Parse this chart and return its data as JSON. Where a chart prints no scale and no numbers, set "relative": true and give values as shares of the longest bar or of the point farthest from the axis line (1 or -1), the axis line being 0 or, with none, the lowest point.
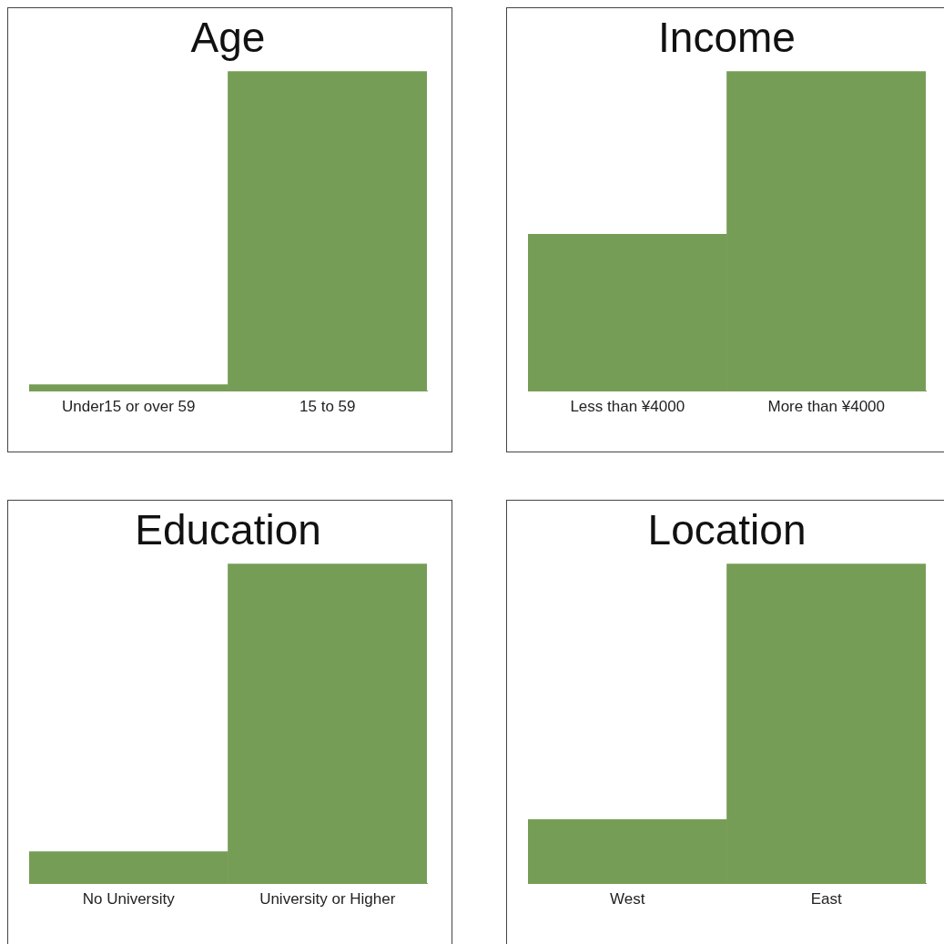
{
  "chart_data": [
    {
      "type": "bar",
      "title": "Age",
      "categories": [
        "Under15 or over 59",
        "15 to 59"
      ],
      "values": [
        0.02,
        1
      ],
      "color": "#769d56",
      "relative": true
    },
    {
      "type": "bar",
      "title": "Income",
      "categories": [
        "Less than ¥4000",
        "More than ¥4000"
      ],
      "values": [
        0.49,
        1
      ],
      "color": "#769d56",
      "relative": true
    },
    {
      "type": "bar",
      "title": "Education",
      "categories": [
        "No University",
        "University or Higher"
      ],
      "values": [
        0.1,
        1
      ],
      "color": "#769d56",
      "relative": true
    },
    {
      "type": "bar",
      "title": "Location",
      "categories": [
        "West",
        "East"
      ],
      "values": [
        0.2,
        1
      ],
      "color": "#769d56",
      "relative": true
    }
  ]
}
